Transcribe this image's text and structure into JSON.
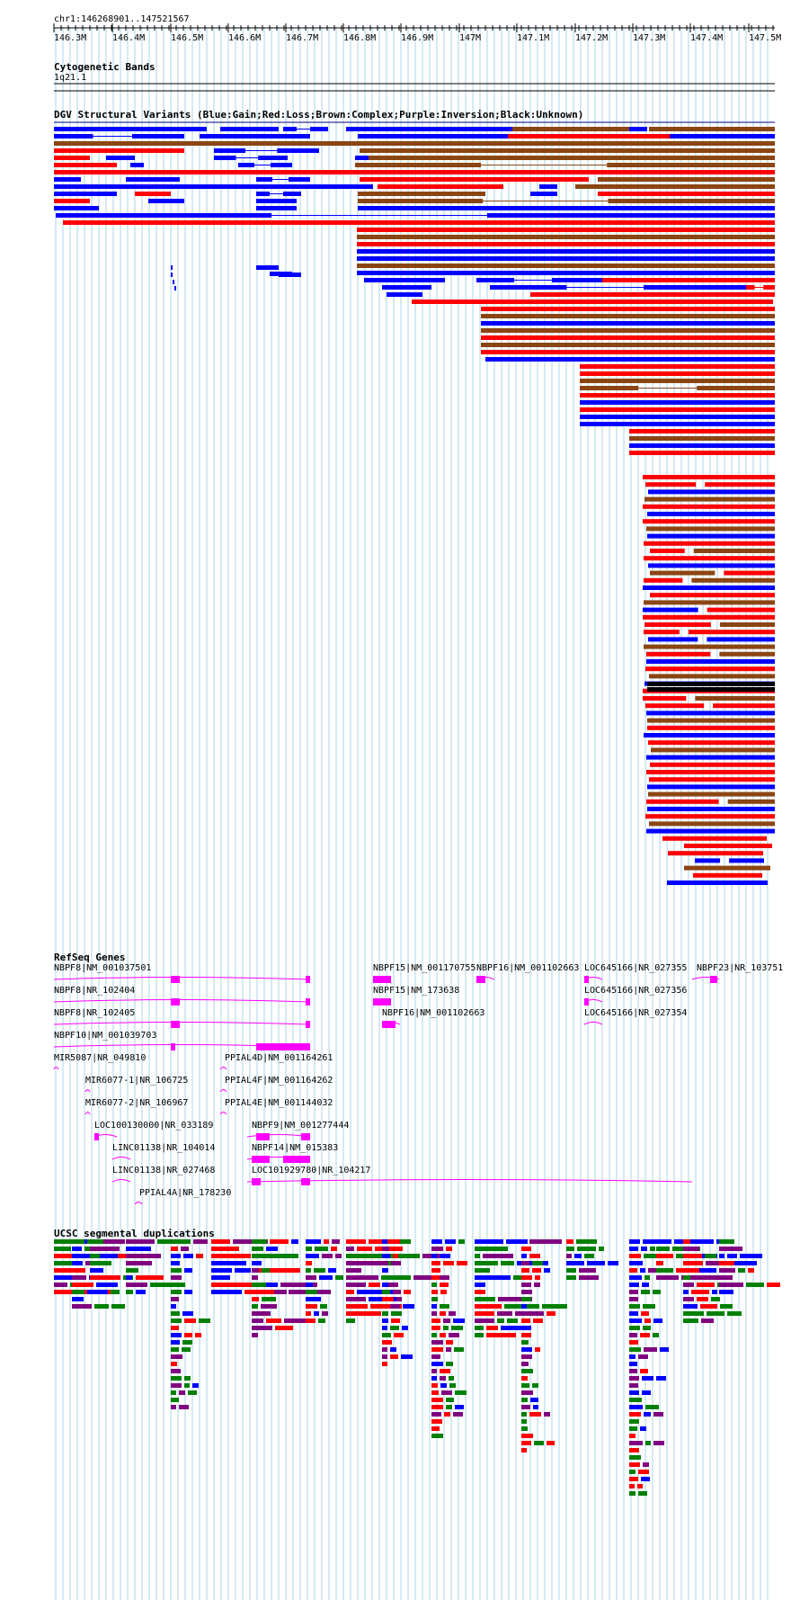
{
  "region": "chr1:146268901..147521567",
  "ruler": {
    "ticks": [
      "146.3M",
      "146.4M",
      "146.5M",
      "146.6M",
      "146.7M",
      "146.8M",
      "146.9M",
      "147M",
      "147.1M",
      "147.2M",
      "147.3M",
      "147.4M",
      "147.5M"
    ]
  },
  "cytoband": {
    "title": "Cytogenetic Bands",
    "band_label": "1q21.1"
  },
  "dgv": {
    "title": "DGV Structural Variants (Blue:Gain;Red:Loss;Brown:Complex;Purple:Inversion;Black:Unknown)",
    "colors": {
      "gain": "#0000ff",
      "loss": "#ff0000",
      "complex": "#8b4513",
      "inversion": "#800080",
      "unknown": "#000000"
    }
  },
  "refseq": {
    "title": "RefSeq Genes",
    "color": "#ff00ff",
    "genes": [
      {
        "label": "NBPF8|NM_001037501"
      },
      {
        "label": "NBPF8|NR_102404"
      },
      {
        "label": "NBPF8|NR_102405"
      },
      {
        "label": "NBPF10|NM_001039703"
      },
      {
        "label": "MIR5087|NR_049810"
      },
      {
        "label": "MIR6077-1|NR_106725"
      },
      {
        "label": "MIR6077-2|NR_106967"
      },
      {
        "label": "LOC100130000|NR_033189"
      },
      {
        "label": "LINC01138|NR_104014"
      },
      {
        "label": "LINC01138|NR_027468"
      },
      {
        "label": "PPIAL4A|NR_178230"
      },
      {
        "label": "PPIAL4D|NM_001164261"
      },
      {
        "label": "PPIAL4F|NM_001164262"
      },
      {
        "label": "PPIAL4E|NM_001144032"
      },
      {
        "label": "NBPF9|NM_001277444"
      },
      {
        "label": "NBPF14|NM_015383"
      },
      {
        "label": "LOC101929780|NR_104217"
      },
      {
        "label": "NBPF15|NM_001170755"
      },
      {
        "label": "NBPF15|NM_173638"
      },
      {
        "label": "NBPF16|NM_001102663"
      },
      {
        "label": "NBPF16|NM_001102663"
      },
      {
        "label": "LOC645166|NR_027355"
      },
      {
        "label": "LOC645166|NR_027356"
      },
      {
        "label": "LOC645166|NR_027354"
      },
      {
        "label": "NBPF23|NR_103751"
      }
    ]
  },
  "segdup": {
    "title": "UCSC segmental duplications",
    "colors": [
      "#008000",
      "#0000ff",
      "#800080",
      "#ff0000"
    ]
  }
}
